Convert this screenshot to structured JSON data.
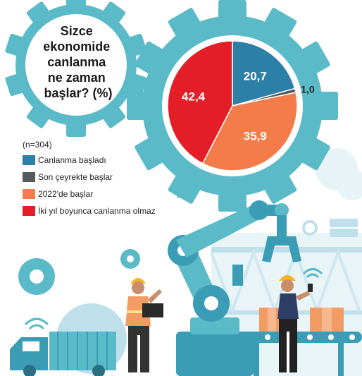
{
  "chart_data": {
    "type": "pie",
    "title_lines": [
      "Sizce",
      "ekonomide",
      "canlanma",
      "ne zaman",
      "başlar? (%)"
    ],
    "note": "(n=304)",
    "categories": [
      "Canlanma başladı",
      "Son çeyrekte başlar",
      "2022'de başlar",
      "İki yıl boyunca canlanma olmaz"
    ],
    "values": [
      20.7,
      1.0,
      35.9,
      42.4
    ],
    "value_labels": [
      "20,7",
      "1,0",
      "35,9",
      "42,4"
    ],
    "colors": [
      "#2c7fa6",
      "#555a5e",
      "#f47c4b",
      "#e31e26"
    ],
    "legend_placement": "left"
  }
}
